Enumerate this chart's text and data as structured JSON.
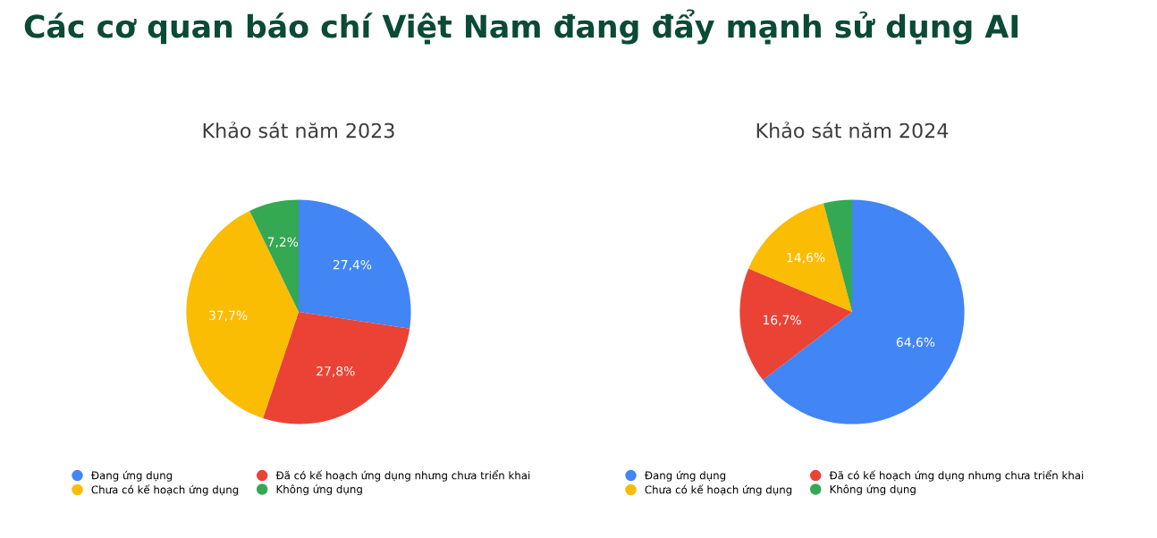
{
  "chart_data": [
    {
      "type": "pie",
      "title": "Các cơ quan báo chí Việt Nam đang đẩy mạnh sử dụng AI",
      "subtitle": "Khảo sát năm 2023",
      "categories": [
        "Đang ứng dụng",
        "Đã có kế hoạch ứng dụng nhưng chưa triển khai",
        "Chưa có kế hoạch ứng dụng",
        "Không ứng dụng"
      ],
      "values": [
        27.4,
        27.8,
        37.7,
        7.2
      ],
      "value_labels": [
        "27,4%",
        "27,8%",
        "37,7%",
        "7,2%"
      ],
      "colors": [
        "#4285f4",
        "#ea4335",
        "#fbbc04",
        "#34a853"
      ],
      "legend": "bottom"
    },
    {
      "type": "pie",
      "subtitle": "Khảo sát năm 2024",
      "categories": [
        "Đang ứng dụng",
        "Đã có kế hoạch ứng dụng nhưng chưa triển khai",
        "Chưa có kế hoạch ứng dụng",
        "Không ứng dụng"
      ],
      "values": [
        64.6,
        16.7,
        14.6,
        4.1
      ],
      "value_labels": [
        "64,6%",
        "16,7%",
        "14,6%",
        null
      ],
      "colors": [
        "#4285f4",
        "#ea4335",
        "#fbbc04",
        "#34a853"
      ],
      "legend": "bottom"
    }
  ]
}
